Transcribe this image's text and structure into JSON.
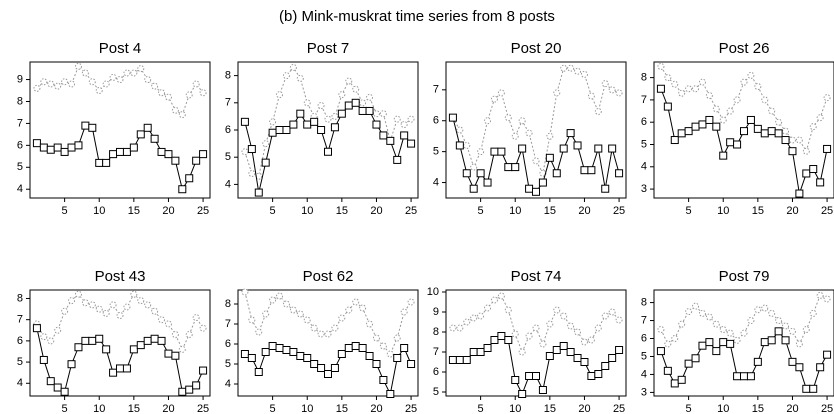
{
  "title": "(b) Mink-muskrat time series from 8 posts",
  "chart_data": [
    {
      "type": "line",
      "title": "Post 4",
      "x": [
        1,
        2,
        3,
        4,
        5,
        6,
        7,
        8,
        9,
        10,
        11,
        12,
        13,
        14,
        15,
        16,
        17,
        18,
        19,
        20,
        21,
        22,
        23,
        24,
        25
      ],
      "xlim": [
        0,
        26
      ],
      "xticks": [
        5,
        10,
        15,
        20,
        25
      ],
      "ylim": [
        3.6,
        9.8
      ],
      "yticks": [
        4,
        5,
        6,
        7,
        8,
        9
      ],
      "series": [
        {
          "color": "#000000",
          "marker": "square",
          "dashed": false,
          "values": [
            6.1,
            5.9,
            5.8,
            5.9,
            5.7,
            5.9,
            6.0,
            6.9,
            6.8,
            5.2,
            5.2,
            5.6,
            5.7,
            5.7,
            5.9,
            6.5,
            6.8,
            6.3,
            5.7,
            5.6,
            5.3,
            4.0,
            4.5,
            5.3,
            5.6
          ]
        },
        {
          "color": "#999999",
          "marker": "circle",
          "dashed": true,
          "values": [
            8.6,
            8.9,
            8.8,
            8.7,
            8.9,
            8.8,
            9.6,
            9.3,
            8.9,
            8.5,
            8.8,
            9.1,
            9.0,
            9.3,
            9.3,
            9.5,
            9.0,
            8.7,
            8.4,
            8.2,
            7.6,
            7.4,
            8.3,
            8.8,
            8.4
          ]
        }
      ]
    },
    {
      "type": "line",
      "title": "Post 7",
      "x": [
        1,
        2,
        3,
        4,
        5,
        6,
        7,
        8,
        9,
        10,
        11,
        12,
        13,
        14,
        15,
        16,
        17,
        18,
        19,
        20,
        21,
        22,
        23,
        24,
        25
      ],
      "xlim": [
        0,
        26
      ],
      "xticks": [
        5,
        10,
        15,
        20,
        25
      ],
      "ylim": [
        3.5,
        8.5
      ],
      "yticks": [
        4,
        5,
        6,
        7,
        8
      ],
      "series": [
        {
          "color": "#000000",
          "marker": "square",
          "dashed": false,
          "values": [
            6.3,
            5.3,
            3.7,
            4.8,
            5.9,
            6.0,
            6.0,
            6.2,
            6.6,
            6.2,
            6.3,
            6.0,
            5.2,
            6.1,
            6.6,
            6.9,
            7.0,
            6.7,
            6.7,
            6.2,
            5.8,
            5.6,
            4.9,
            5.8,
            5.5
          ]
        },
        {
          "color": "#999999",
          "marker": "circle",
          "dashed": true,
          "values": [
            5.2,
            4.4,
            4.3,
            5.5,
            6.3,
            7.3,
            8.0,
            8.3,
            7.9,
            7.0,
            6.5,
            6.9,
            6.4,
            6.5,
            7.3,
            7.8,
            7.5,
            7.0,
            7.2,
            6.6,
            6.6,
            5.6,
            6.4,
            6.2,
            6.4
          ]
        }
      ]
    },
    {
      "type": "line",
      "title": "Post 20",
      "x": [
        1,
        2,
        3,
        4,
        5,
        6,
        7,
        8,
        9,
        10,
        11,
        12,
        13,
        14,
        15,
        16,
        17,
        18,
        19,
        20,
        21,
        22,
        23,
        24,
        25
      ],
      "xlim": [
        0,
        26
      ],
      "xticks": [
        5,
        10,
        15,
        20,
        25
      ],
      "ylim": [
        3.5,
        7.9
      ],
      "yticks": [
        4,
        5,
        6,
        7
      ],
      "series": [
        {
          "color": "#000000",
          "marker": "square",
          "dashed": false,
          "values": [
            6.1,
            5.2,
            4.3,
            3.8,
            4.3,
            4.0,
            5.0,
            5.0,
            4.5,
            4.5,
            5.1,
            3.8,
            3.7,
            4.0,
            4.8,
            4.3,
            5.1,
            5.6,
            5.2,
            4.4,
            4.4,
            5.1,
            3.8,
            5.1,
            4.3
          ]
        },
        {
          "color": "#999999",
          "marker": "circle",
          "dashed": true,
          "values": [
            6.1,
            5.7,
            5.2,
            4.5,
            5.0,
            6.0,
            6.7,
            6.9,
            6.1,
            5.5,
            6.0,
            5.6,
            4.7,
            4.3,
            5.5,
            6.9,
            7.7,
            7.7,
            7.6,
            7.5,
            6.8,
            6.3,
            7.2,
            7.0,
            6.9
          ]
        }
      ]
    },
    {
      "type": "line",
      "title": "Post 26",
      "x": [
        1,
        2,
        3,
        4,
        5,
        6,
        7,
        8,
        9,
        10,
        11,
        12,
        13,
        14,
        15,
        16,
        17,
        18,
        19,
        20,
        21,
        22,
        23,
        24,
        25
      ],
      "xlim": [
        0,
        26
      ],
      "xticks": [
        5,
        10,
        15,
        20,
        25
      ],
      "ylim": [
        2.6,
        8.7
      ],
      "yticks": [
        3,
        4,
        5,
        6,
        7,
        8
      ],
      "series": [
        {
          "color": "#000000",
          "marker": "square",
          "dashed": false,
          "values": [
            7.5,
            6.7,
            5.2,
            5.5,
            5.6,
            5.8,
            5.9,
            6.1,
            5.8,
            4.5,
            5.1,
            5.0,
            5.6,
            6.1,
            5.7,
            5.5,
            5.6,
            5.5,
            5.2,
            4.7,
            2.8,
            3.7,
            3.9,
            3.3,
            4.8
          ]
        },
        {
          "color": "#999999",
          "marker": "circle",
          "dashed": true,
          "values": [
            8.5,
            8.0,
            7.7,
            7.3,
            7.5,
            7.5,
            7.8,
            7.2,
            6.6,
            6.1,
            6.5,
            7.0,
            7.8,
            8.1,
            7.6,
            7.0,
            6.5,
            6.0,
            5.6,
            5.2,
            5.2,
            4.7,
            5.8,
            6.2,
            7.1
          ]
        }
      ]
    },
    {
      "type": "line",
      "title": "Post 43",
      "x": [
        1,
        2,
        3,
        4,
        5,
        6,
        7,
        8,
        9,
        10,
        11,
        12,
        13,
        14,
        15,
        16,
        17,
        18,
        19,
        20,
        21,
        22,
        23,
        24,
        25
      ],
      "xlim": [
        0,
        26
      ],
      "xticks": [
        5,
        10,
        15,
        20,
        25
      ],
      "ylim": [
        3.4,
        8.4
      ],
      "yticks": [
        4,
        5,
        6,
        7,
        8
      ],
      "series": [
        {
          "color": "#000000",
          "marker": "square",
          "dashed": false,
          "values": [
            6.6,
            5.1,
            4.1,
            3.8,
            3.6,
            4.9,
            5.7,
            6.0,
            6.0,
            6.1,
            5.6,
            4.5,
            4.7,
            4.7,
            5.6,
            5.8,
            6.0,
            6.1,
            6.0,
            5.4,
            5.3,
            3.6,
            3.7,
            3.9,
            4.6
          ]
        },
        {
          "color": "#999999",
          "marker": "circle",
          "dashed": true,
          "values": [
            6.8,
            6.2,
            6.0,
            6.5,
            7.4,
            7.9,
            8.2,
            7.8,
            7.7,
            7.5,
            7.3,
            7.7,
            7.2,
            7.6,
            8.2,
            7.9,
            7.7,
            7.4,
            7.0,
            6.8,
            6.3,
            5.6,
            6.3,
            7.1,
            6.6
          ]
        }
      ]
    },
    {
      "type": "line",
      "title": "Post 62",
      "x": [
        1,
        2,
        3,
        4,
        5,
        6,
        7,
        8,
        9,
        10,
        11,
        12,
        13,
        14,
        15,
        16,
        17,
        18,
        19,
        20,
        21,
        22,
        23,
        24,
        25
      ],
      "xlim": [
        0,
        26
      ],
      "xticks": [
        5,
        10,
        15,
        20,
        25
      ],
      "ylim": [
        3.4,
        8.7
      ],
      "yticks": [
        4,
        5,
        6,
        7,
        8
      ],
      "series": [
        {
          "color": "#000000",
          "marker": "square",
          "dashed": false,
          "values": [
            5.5,
            5.3,
            4.6,
            5.6,
            5.9,
            5.8,
            5.7,
            5.6,
            5.4,
            5.3,
            5.0,
            4.8,
            4.5,
            4.8,
            5.5,
            5.8,
            5.9,
            5.8,
            5.4,
            5.0,
            4.2,
            3.5,
            5.3,
            5.8,
            5.0
          ]
        },
        {
          "color": "#999999",
          "marker": "circle",
          "dashed": true,
          "values": [
            8.6,
            7.2,
            6.6,
            7.5,
            8.2,
            8.4,
            8.0,
            7.7,
            7.5,
            7.2,
            6.8,
            6.5,
            6.5,
            6.8,
            7.3,
            7.7,
            8.1,
            7.8,
            7.0,
            6.3,
            5.9,
            5.5,
            6.3,
            7.6,
            8.1
          ]
        }
      ]
    },
    {
      "type": "line",
      "title": "Post 74",
      "x": [
        1,
        2,
        3,
        4,
        5,
        6,
        7,
        8,
        9,
        10,
        11,
        12,
        13,
        14,
        15,
        16,
        17,
        18,
        19,
        20,
        21,
        22,
        23,
        24,
        25
      ],
      "xlim": [
        0,
        26
      ],
      "xticks": [
        5,
        10,
        15,
        20,
        25
      ],
      "ylim": [
        4.8,
        10.1
      ],
      "yticks": [
        5,
        6,
        7,
        8,
        9,
        10
      ],
      "series": [
        {
          "color": "#000000",
          "marker": "square",
          "dashed": false,
          "values": [
            6.6,
            6.6,
            6.6,
            7.0,
            7.0,
            7.2,
            7.6,
            7.8,
            7.6,
            5.6,
            4.9,
            5.8,
            5.8,
            5.1,
            6.8,
            7.1,
            7.3,
            7.0,
            6.7,
            6.5,
            5.8,
            5.9,
            6.3,
            6.7,
            7.1
          ]
        },
        {
          "color": "#999999",
          "marker": "circle",
          "dashed": true,
          "values": [
            8.2,
            8.2,
            8.5,
            8.7,
            8.8,
            9.2,
            9.6,
            9.8,
            9.1,
            7.9,
            7.0,
            7.8,
            8.2,
            7.4,
            8.4,
            9.1,
            8.8,
            8.3,
            8.0,
            7.5,
            7.6,
            8.2,
            8.8,
            9.0,
            8.6
          ]
        }
      ]
    },
    {
      "type": "line",
      "title": "Post 79",
      "x": [
        1,
        2,
        3,
        4,
        5,
        6,
        7,
        8,
        9,
        10,
        11,
        12,
        13,
        14,
        15,
        16,
        17,
        18,
        19,
        20,
        21,
        22,
        23,
        24,
        25
      ],
      "xlim": [
        0,
        26
      ],
      "xticks": [
        5,
        10,
        15,
        20,
        25
      ],
      "ylim": [
        2.8,
        8.7
      ],
      "yticks": [
        3,
        4,
        5,
        6,
        7,
        8
      ],
      "series": [
        {
          "color": "#000000",
          "marker": "square",
          "dashed": false,
          "values": [
            5.3,
            4.2,
            3.5,
            3.7,
            4.6,
            4.9,
            5.6,
            5.8,
            5.3,
            5.8,
            5.7,
            3.9,
            3.9,
            3.9,
            4.7,
            5.8,
            5.9,
            6.4,
            5.9,
            4.7,
            4.4,
            3.2,
            3.2,
            4.4,
            5.1
          ]
        },
        {
          "color": "#999999",
          "marker": "circle",
          "dashed": true,
          "values": [
            6.5,
            5.7,
            6.0,
            6.8,
            7.5,
            7.8,
            7.4,
            7.2,
            6.8,
            6.5,
            6.3,
            5.9,
            6.3,
            7.0,
            7.6,
            7.7,
            7.4,
            7.0,
            6.7,
            6.4,
            5.7,
            6.5,
            7.4,
            8.4,
            8.2
          ]
        }
      ]
    }
  ]
}
